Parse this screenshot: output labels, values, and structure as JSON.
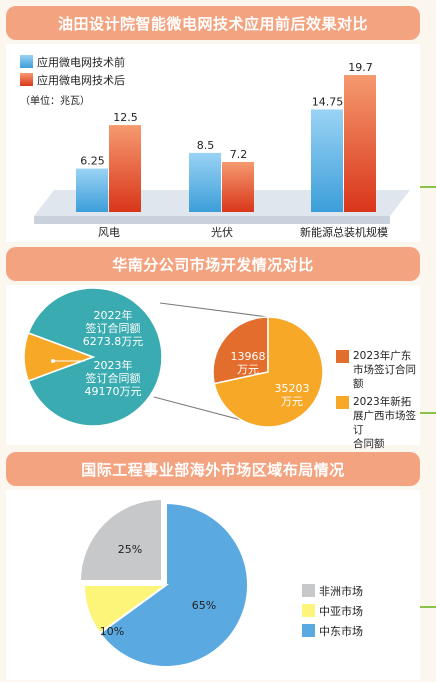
{
  "chart_data": [
    {
      "type": "bar",
      "title": "油田设计院智能微电网技术应用前后效果对比",
      "unit_label": "（单位：兆瓦）",
      "categories": [
        "风电",
        "光伏",
        "新能源总装机规模"
      ],
      "series": [
        {
          "name": "应用微电网技术前",
          "values": [
            6.25,
            8.5,
            14.75
          ]
        },
        {
          "name": "应用微电网技术后",
          "values": [
            12.5,
            7.2,
            19.7
          ]
        }
      ],
      "value_labels": [
        [
          "6.25",
          "8.5",
          "14.75"
        ],
        [
          "12.5",
          "7.2",
          "19.7"
        ]
      ],
      "colors": [
        "#5ab4e6",
        "#e9502a"
      ],
      "ylim": [
        0,
        21
      ]
    },
    {
      "type": "pie",
      "title": "华南分公司市场开发情况对比",
      "pies": [
        {
          "slices": [
            {
              "label": "2022年\n签订合同额\n6273.8万元",
              "value": 6273.8,
              "color": "#f6a826"
            },
            {
              "label": "2023年\n签订合同额\n49170万元",
              "value": 49170,
              "color": "#3aabb0"
            }
          ]
        },
        {
          "slices": [
            {
              "label": "13968\n万元",
              "value": 13968,
              "color": "#e26d2d"
            },
            {
              "label": "35203\n万元",
              "value": 35203,
              "color": "#f6a826"
            }
          ],
          "legend": [
            {
              "label": "2023年广东\n市场签订合同额",
              "color": "#e26d2d"
            },
            {
              "label": "2023年新拓\n展广西市场签订\n合同额",
              "color": "#f6a826"
            }
          ]
        }
      ]
    },
    {
      "type": "pie",
      "title": "国际工程事业部海外市场区域布局情况",
      "slices": [
        {
          "label": "中东市场",
          "value": 65,
          "display": "65%",
          "color": "#5aa9e0"
        },
        {
          "label": "中亚市场",
          "value": 10,
          "display": "10%",
          "color": "#fdf47a"
        },
        {
          "label": "非洲市场",
          "value": 25,
          "display": "25%",
          "color": "#c6c8c9"
        }
      ],
      "legend_order": [
        "非洲市场",
        "中亚市场",
        "中东市场"
      ]
    }
  ]
}
